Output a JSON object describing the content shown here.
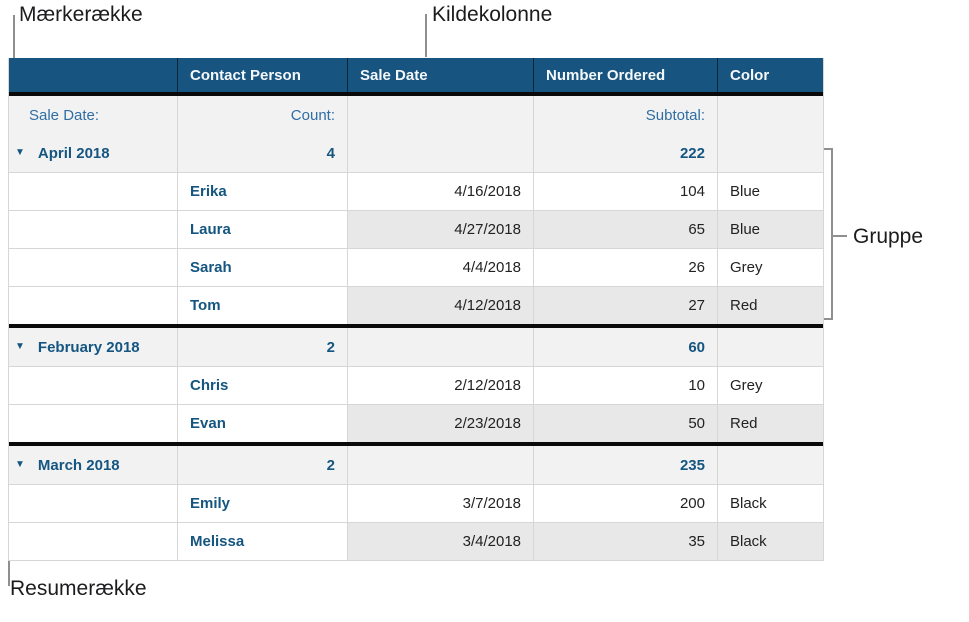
{
  "callouts": {
    "label_row": "Mærkerække",
    "source_column": "Kildekolonne",
    "group": "Gruppe",
    "summary_row": "Resumerække"
  },
  "table": {
    "columns": [
      {
        "label": ""
      },
      {
        "label": "Contact Person"
      },
      {
        "label": "Sale Date"
      },
      {
        "label": "Number Ordered"
      },
      {
        "label": "Color"
      }
    ],
    "label_row": {
      "category_label": "Sale Date:",
      "count_label": "Count:",
      "subtotal_label": "Subtotal:"
    },
    "disclosure_icon": "▼",
    "groups": [
      {
        "name": "April 2018",
        "count": "4",
        "subtotal": "222",
        "rows": [
          {
            "contact": "Erika",
            "date": "4/16/2018",
            "number": "104",
            "color": "Blue"
          },
          {
            "contact": "Laura",
            "date": "4/27/2018",
            "number": "65",
            "color": "Blue"
          },
          {
            "contact": "Sarah",
            "date": "4/4/2018",
            "number": "26",
            "color": "Grey"
          },
          {
            "contact": "Tom",
            "date": "4/12/2018",
            "number": "27",
            "color": "Red"
          }
        ]
      },
      {
        "name": "February 2018",
        "count": "2",
        "subtotal": "60",
        "rows": [
          {
            "contact": "Chris",
            "date": "2/12/2018",
            "number": "10",
            "color": "Grey"
          },
          {
            "contact": "Evan",
            "date": "2/23/2018",
            "number": "50",
            "color": "Red"
          }
        ]
      },
      {
        "name": "March 2018",
        "count": "2",
        "subtotal": "235",
        "rows": [
          {
            "contact": "Emily",
            "date": "3/7/2018",
            "number": "200",
            "color": "Black"
          },
          {
            "contact": "Melissa",
            "date": "3/4/2018",
            "number": "35",
            "color": "Black"
          }
        ]
      }
    ]
  },
  "colors": {
    "header_bg": "#175480",
    "header_text": "#f5f8fa",
    "accent_blue_bold": "#155681",
    "accent_blue_label": "#2f6da3",
    "band_bg": "#e8e8e8",
    "summary_row_bg": "#f2f2f3",
    "thick_border": "#0a0a0a",
    "thin_border": "#d6d6d6",
    "callout_line": "#8f8f8f",
    "callout_text": "#1c1c1e"
  }
}
